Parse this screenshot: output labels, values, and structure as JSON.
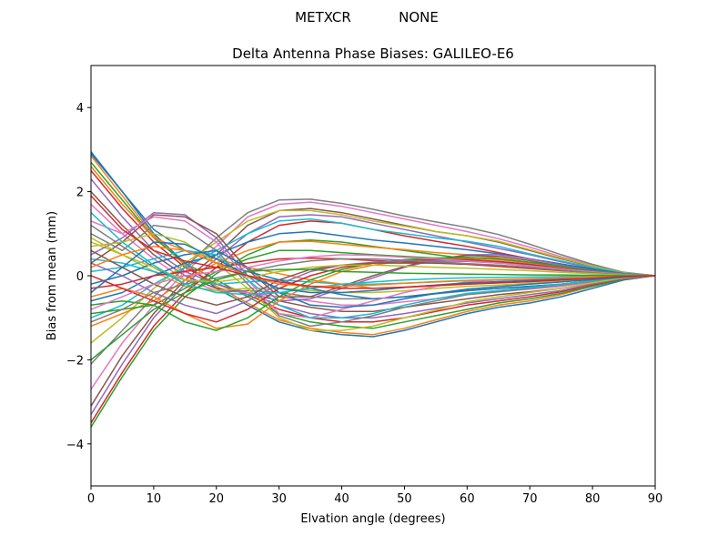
{
  "figure": {
    "suptitle_left": "METXCR",
    "suptitle_right": "NONE"
  },
  "chart_data": {
    "type": "line",
    "title": "Delta Antenna Phase Biases: GALILEO-E6",
    "xlabel": "Elvation angle (degrees)",
    "ylabel": "Bias from mean (mm)",
    "xlim": [
      0,
      90
    ],
    "ylim": [
      -5,
      5
    ],
    "xticks": [
      0,
      10,
      20,
      30,
      40,
      50,
      60,
      70,
      80,
      90
    ],
    "yticks": [
      -4,
      -2,
      0,
      2,
      4
    ],
    "ytick_labels": [
      "−4",
      "−2",
      "0",
      "2",
      "4"
    ],
    "grid": false,
    "legend": "none",
    "x": [
      0,
      5,
      10,
      15,
      20,
      25,
      30,
      35,
      40,
      45,
      50,
      55,
      60,
      65,
      70,
      75,
      80,
      85,
      90
    ],
    "palette": [
      "#1f77b4",
      "#ff7f0e",
      "#2ca02c",
      "#d62728",
      "#9467bd",
      "#8c564b",
      "#e377c2",
      "#7f7f7f",
      "#bcbd22",
      "#17becf"
    ],
    "series": [
      {
        "values": [
          2.95,
          2.0,
          1.0,
          0.3,
          -0.3,
          -0.7,
          -1.1,
          -1.3,
          -1.4,
          -1.45,
          -1.3,
          -1.1,
          -0.9,
          -0.75,
          -0.65,
          -0.5,
          -0.3,
          -0.1,
          0
        ]
      },
      {
        "values": [
          2.85,
          1.9,
          0.95,
          0.25,
          -0.25,
          -0.65,
          -1.05,
          -1.25,
          -1.35,
          -1.4,
          -1.25,
          -1.05,
          -0.85,
          -0.7,
          -0.6,
          -0.45,
          -0.25,
          -0.08,
          0
        ]
      },
      {
        "values": [
          2.7,
          1.8,
          0.9,
          0.3,
          -0.1,
          -0.5,
          -0.9,
          -1.1,
          -1.2,
          -1.25,
          -1.1,
          -0.95,
          -0.8,
          -0.65,
          -0.55,
          -0.42,
          -0.25,
          -0.08,
          0
        ]
      },
      {
        "values": [
          2.5,
          1.6,
          0.8,
          0.2,
          -0.2,
          -0.45,
          -0.8,
          -1.0,
          -1.1,
          -1.1,
          -1.0,
          -0.85,
          -0.7,
          -0.6,
          -0.5,
          -0.38,
          -0.22,
          -0.07,
          0
        ]
      },
      {
        "values": [
          2.3,
          1.4,
          0.6,
          0.1,
          -0.2,
          -0.4,
          -0.7,
          -0.9,
          -1.0,
          -1.0,
          -0.9,
          -0.78,
          -0.65,
          -0.55,
          -0.45,
          -0.35,
          -0.2,
          -0.06,
          0
        ]
      },
      {
        "values": [
          2.0,
          1.2,
          0.5,
          0.0,
          -0.3,
          -0.4,
          -0.6,
          -0.75,
          -0.85,
          -0.85,
          -0.75,
          -0.65,
          -0.55,
          -0.45,
          -0.38,
          -0.3,
          -0.18,
          -0.05,
          0
        ]
      },
      {
        "values": [
          1.7,
          1.0,
          0.4,
          -0.1,
          -0.35,
          -0.4,
          -0.5,
          -0.6,
          -0.7,
          -0.7,
          -0.62,
          -0.55,
          -0.45,
          -0.38,
          -0.32,
          -0.25,
          -0.15,
          -0.05,
          0
        ]
      },
      {
        "values": [
          1.2,
          0.7,
          0.2,
          -0.2,
          -0.4,
          -0.35,
          -0.4,
          -0.5,
          -0.55,
          -0.55,
          -0.5,
          -0.43,
          -0.36,
          -0.3,
          -0.25,
          -0.2,
          -0.12,
          -0.04,
          0
        ]
      },
      {
        "values": [
          0.8,
          0.5,
          0.1,
          -0.25,
          -0.35,
          -0.3,
          -0.3,
          -0.35,
          -0.4,
          -0.4,
          -0.36,
          -0.3,
          -0.25,
          -0.22,
          -0.18,
          -0.14,
          -0.08,
          -0.03,
          0
        ]
      },
      {
        "values": [
          0.4,
          0.3,
          0.1,
          -0.1,
          -0.2,
          -0.15,
          -0.1,
          -0.15,
          -0.2,
          -0.2,
          -0.18,
          -0.15,
          -0.12,
          -0.1,
          -0.08,
          -0.06,
          -0.04,
          -0.01,
          0
        ]
      },
      {
        "values": [
          2.9,
          2.0,
          1.1,
          0.6,
          0.3,
          0.1,
          -0.1,
          -0.3,
          -0.45,
          -0.55,
          -0.5,
          -0.42,
          -0.35,
          -0.3,
          -0.25,
          -0.2,
          -0.12,
          -0.04,
          0
        ]
      },
      {
        "values": [
          2.6,
          1.7,
          0.9,
          0.6,
          0.4,
          0.2,
          0.05,
          -0.1,
          -0.2,
          -0.3,
          -0.28,
          -0.24,
          -0.2,
          -0.17,
          -0.14,
          -0.11,
          -0.07,
          -0.02,
          0
        ]
      },
      {
        "values": [
          -3.6,
          -2.4,
          -1.3,
          -0.5,
          0.05,
          0.5,
          0.8,
          0.85,
          0.8,
          0.7,
          0.6,
          0.5,
          0.4,
          0.32,
          0.25,
          0.18,
          0.1,
          0.03,
          0
        ]
      },
      {
        "values": [
          -3.5,
          -2.3,
          -1.2,
          -0.4,
          0.2,
          0.8,
          1.2,
          1.3,
          1.25,
          1.1,
          0.95,
          0.82,
          0.7,
          0.55,
          0.4,
          0.28,
          0.15,
          0.05,
          0
        ]
      },
      {
        "values": [
          -3.3,
          -2.1,
          -1.0,
          -0.2,
          0.4,
          1.0,
          1.4,
          1.45,
          1.4,
          1.25,
          1.1,
          0.95,
          0.8,
          0.65,
          0.5,
          0.33,
          0.18,
          0.06,
          0
        ]
      },
      {
        "values": [
          -3.1,
          -1.9,
          -0.9,
          -0.1,
          0.5,
          1.2,
          1.55,
          1.6,
          1.5,
          1.35,
          1.2,
          1.05,
          0.95,
          0.8,
          0.6,
          0.4,
          0.22,
          0.07,
          0
        ]
      },
      {
        "values": [
          -2.7,
          -1.6,
          -0.7,
          0.1,
          0.7,
          1.4,
          1.7,
          1.75,
          1.65,
          1.5,
          1.35,
          1.2,
          1.05,
          0.88,
          0.68,
          0.45,
          0.25,
          0.08,
          0
        ]
      },
      {
        "values": [
          -2.1,
          -1.3,
          -0.5,
          0.2,
          0.9,
          1.5,
          1.8,
          1.82,
          1.72,
          1.58,
          1.42,
          1.28,
          1.15,
          0.98,
          0.75,
          0.5,
          0.27,
          0.08,
          0
        ]
      },
      {
        "values": [
          -1.6,
          -1.0,
          -0.3,
          0.3,
          0.8,
          1.3,
          1.55,
          1.55,
          1.45,
          1.3,
          1.18,
          1.05,
          0.95,
          0.82,
          0.62,
          0.42,
          0.23,
          0.07,
          0
        ]
      },
      {
        "values": [
          -1.0,
          -0.7,
          -0.2,
          0.2,
          0.6,
          1.0,
          1.3,
          1.35,
          1.25,
          1.1,
          1.0,
          0.9,
          0.82,
          0.7,
          0.52,
          0.35,
          0.2,
          0.06,
          0
        ]
      },
      {
        "values": [
          -0.6,
          -0.4,
          0.0,
          0.3,
          0.5,
          0.8,
          1.0,
          1.05,
          0.95,
          0.85,
          0.78,
          0.7,
          0.62,
          0.52,
          0.4,
          0.28,
          0.16,
          0.05,
          0
        ]
      },
      {
        "values": [
          -1.2,
          -0.9,
          -0.6,
          -0.1,
          0.3,
          0.6,
          0.8,
          0.82,
          0.75,
          0.68,
          0.62,
          0.55,
          0.5,
          0.42,
          0.32,
          0.22,
          0.12,
          0.04,
          0
        ]
      },
      {
        "values": [
          -0.9,
          -0.8,
          -0.7,
          -0.3,
          0.1,
          0.4,
          0.6,
          0.6,
          0.55,
          0.5,
          0.46,
          0.42,
          0.38,
          0.32,
          0.25,
          0.17,
          0.1,
          0.03,
          0
        ]
      },
      {
        "values": [
          -0.3,
          -0.2,
          0.0,
          0.1,
          0.2,
          0.3,
          0.4,
          0.42,
          0.4,
          0.36,
          0.33,
          0.3,
          0.27,
          0.22,
          0.17,
          0.12,
          0.07,
          0.02,
          0
        ]
      },
      {
        "values": [
          0.5,
          0.9,
          1.5,
          1.45,
          0.9,
          0.0,
          -0.6,
          -0.55,
          -0.3,
          -0.05,
          0.2,
          0.38,
          0.5,
          0.5,
          0.4,
          0.25,
          0.12,
          0.03,
          0
        ]
      },
      {
        "values": [
          0.3,
          0.8,
          1.45,
          1.4,
          1.0,
          0.15,
          -0.5,
          -0.5,
          -0.25,
          0.0,
          0.22,
          0.4,
          0.48,
          0.46,
          0.36,
          0.22,
          0.1,
          0.03,
          0
        ]
      },
      {
        "values": [
          1.3,
          1.0,
          1.4,
          1.3,
          0.8,
          -0.1,
          -0.9,
          -1.0,
          -0.8,
          -0.6,
          -0.4,
          -0.25,
          -0.15,
          -0.1,
          -0.08,
          -0.06,
          -0.04,
          -0.01,
          0
        ]
      },
      {
        "values": [
          1.0,
          0.6,
          1.2,
          1.1,
          0.6,
          -0.2,
          -0.95,
          -1.2,
          -1.1,
          -0.95,
          -0.75,
          -0.6,
          -0.45,
          -0.38,
          -0.3,
          -0.22,
          -0.13,
          -0.04,
          0
        ]
      },
      {
        "values": [
          0.7,
          0.8,
          1.0,
          0.8,
          0.3,
          -0.3,
          -1.0,
          -1.3,
          -1.3,
          -1.2,
          -1.0,
          -0.82,
          -0.62,
          -0.5,
          -0.4,
          -0.3,
          -0.17,
          -0.05,
          0
        ]
      },
      {
        "values": [
          0.1,
          0.2,
          0.4,
          0.6,
          0.5,
          -0.1,
          -0.7,
          -1.0,
          -1.0,
          -0.9,
          -0.7,
          -0.55,
          -0.42,
          -0.35,
          -0.28,
          -0.2,
          -0.12,
          -0.04,
          0
        ]
      },
      {
        "values": [
          -0.2,
          0.0,
          0.3,
          0.5,
          0.6,
          0.2,
          -0.4,
          -0.7,
          -0.75,
          -0.7,
          -0.55,
          -0.42,
          -0.32,
          -0.26,
          -0.2,
          -0.15,
          -0.09,
          -0.03,
          0
        ]
      },
      {
        "values": [
          -0.5,
          -0.3,
          -0.5,
          -0.9,
          -1.25,
          -1.15,
          -0.6,
          -0.2,
          0.1,
          0.25,
          0.35,
          0.4,
          0.42,
          0.38,
          0.3,
          0.2,
          0.1,
          0.03,
          0
        ]
      },
      {
        "values": [
          -0.7,
          -0.6,
          -0.7,
          -1.1,
          -1.3,
          -1.0,
          -0.5,
          -0.1,
          0.15,
          0.3,
          0.38,
          0.42,
          0.44,
          0.4,
          0.32,
          0.22,
          0.11,
          0.03,
          0
        ]
      },
      {
        "values": [
          0.0,
          -0.3,
          -0.6,
          -0.9,
          -1.1,
          -0.8,
          -0.3,
          0.0,
          0.2,
          0.3,
          0.35,
          0.38,
          0.38,
          0.34,
          0.27,
          0.18,
          0.09,
          0.03,
          0
        ]
      },
      {
        "values": [
          0.3,
          0.0,
          -0.4,
          -0.7,
          -0.9,
          -0.6,
          -0.2,
          0.1,
          0.25,
          0.32,
          0.35,
          0.35,
          0.34,
          0.3,
          0.24,
          0.16,
          0.08,
          0.02,
          0
        ]
      },
      {
        "values": [
          0.6,
          0.2,
          -0.2,
          -0.5,
          -0.7,
          -0.5,
          -0.1,
          0.15,
          0.25,
          0.3,
          0.3,
          0.3,
          0.28,
          0.25,
          0.2,
          0.14,
          0.07,
          0.02,
          0
        ]
      },
      {
        "values": [
          -0.8,
          -0.5,
          -0.2,
          0.0,
          0.1,
          0.2,
          0.35,
          0.45,
          0.5,
          0.48,
          0.44,
          0.4,
          0.35,
          0.3,
          0.23,
          0.16,
          0.09,
          0.03,
          0
        ]
      },
      {
        "values": [
          -1.1,
          -0.8,
          -0.4,
          -0.2,
          -0.05,
          0.1,
          0.25,
          0.35,
          0.4,
          0.4,
          0.37,
          0.33,
          0.29,
          0.25,
          0.19,
          0.13,
          0.07,
          0.02,
          0
        ]
      },
      {
        "values": [
          0.9,
          0.5,
          0.2,
          -0.1,
          -0.15,
          -0.05,
          0.1,
          0.2,
          0.25,
          0.25,
          0.23,
          0.2,
          0.18,
          0.15,
          0.12,
          0.08,
          0.05,
          0.01,
          0
        ]
      },
      {
        "values": [
          1.5,
          0.8,
          0.25,
          -0.2,
          -0.4,
          -0.45,
          -0.4,
          -0.3,
          -0.2,
          -0.15,
          -0.1,
          -0.07,
          -0.05,
          -0.04,
          -0.03,
          -0.02,
          -0.01,
          0.0,
          0
        ]
      },
      {
        "values": [
          -0.4,
          0.2,
          0.8,
          0.75,
          0.4,
          0.0,
          -0.3,
          -0.4,
          -0.4,
          -0.35,
          -0.28,
          -0.22,
          -0.17,
          -0.14,
          -0.11,
          -0.08,
          -0.05,
          -0.01,
          0
        ]
      },
      {
        "values": [
          0.2,
          0.5,
          0.7,
          0.6,
          0.3,
          0.0,
          -0.2,
          -0.25,
          -0.25,
          -0.22,
          -0.18,
          -0.14,
          -0.11,
          -0.09,
          -0.07,
          -0.05,
          -0.03,
          -0.01,
          0
        ]
      },
      {
        "values": [
          -2.0,
          -1.4,
          -0.8,
          -0.4,
          -0.1,
          0.1,
          0.15,
          0.15,
          0.1,
          0.08,
          0.06,
          0.05,
          0.04,
          0.03,
          0.02,
          0.02,
          0.01,
          0.0,
          0
        ]
      },
      {
        "values": [
          1.9,
          1.1,
          0.6,
          0.35,
          0.2,
          0.0,
          -0.15,
          -0.25,
          -0.3,
          -0.3,
          -0.27,
          -0.23,
          -0.2,
          -0.17,
          -0.14,
          -0.1,
          -0.06,
          -0.02,
          0
        ]
      }
    ]
  }
}
